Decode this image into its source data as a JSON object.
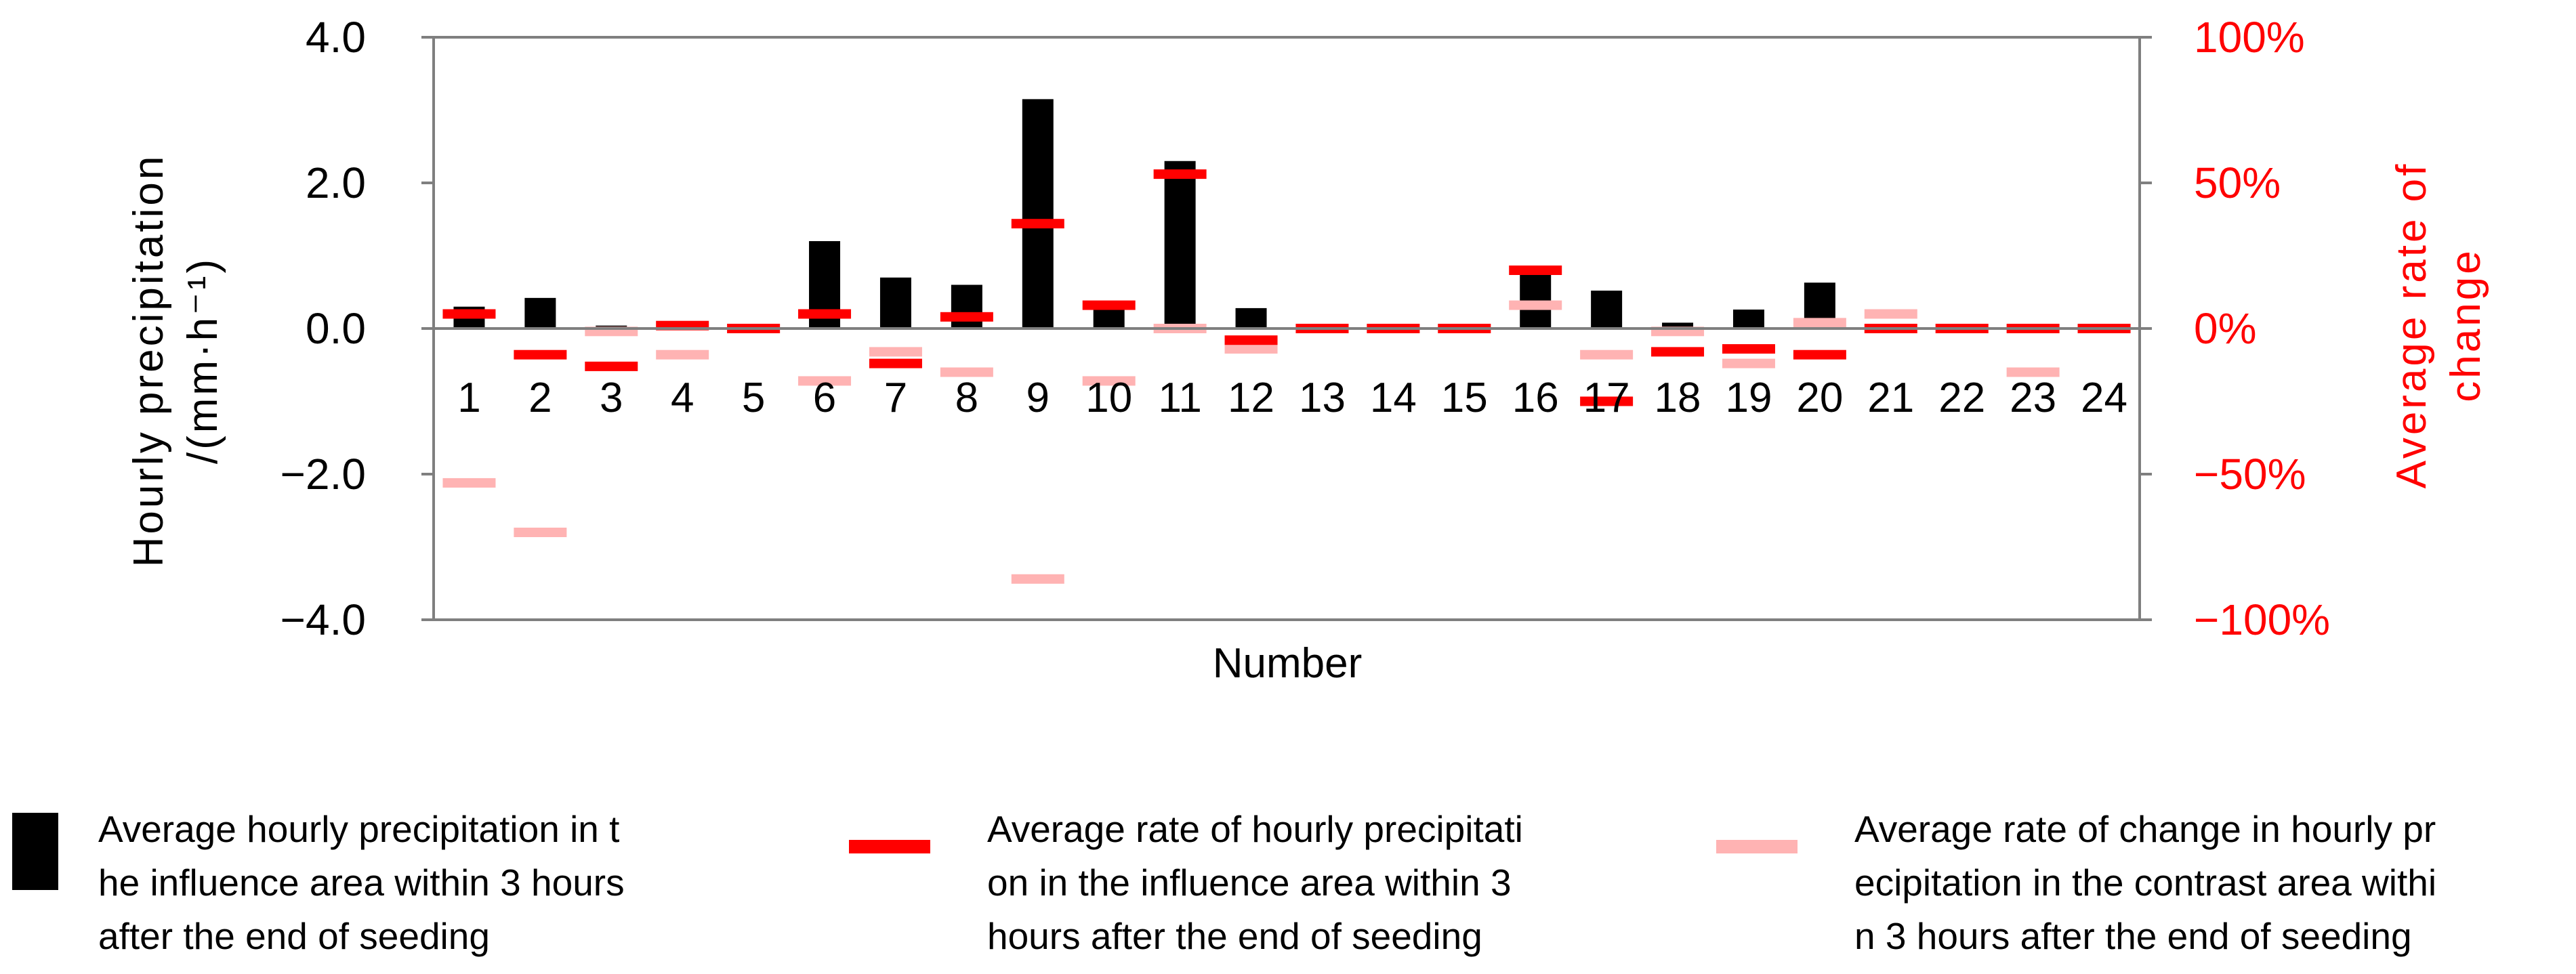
{
  "colors": {
    "bar": "#000000",
    "influence": "#ff0000",
    "contrast": "#ffb3b3",
    "right_axis": "#ff0000",
    "frame": "#7f7f7f"
  },
  "chart_data": {
    "type": "bar",
    "categories": [
      "1",
      "2",
      "3",
      "4",
      "5",
      "6",
      "7",
      "8",
      "9",
      "10",
      "11",
      "12",
      "13",
      "14",
      "15",
      "16",
      "17",
      "18",
      "19",
      "20",
      "21",
      "22",
      "23",
      "24"
    ],
    "xlabel": "Number",
    "ylabel_left_line1": "Hourly precipitation",
    "ylabel_left_line2": "/(mm·h⁻¹)",
    "ylabel_right_line1": "Average rate of",
    "ylabel_right_line2": "change",
    "ylim_left": [
      -4,
      4
    ],
    "ylim_right": [
      -100,
      100
    ],
    "yticks_left": [
      "4.0",
      "2.0",
      "0.0",
      "−2.0",
      "−4.0"
    ],
    "yticks_right": [
      "100%",
      "50%",
      "0%",
      "−50%",
      "−100%"
    ],
    "grid": false,
    "legend_position": "bottom",
    "series": [
      {
        "name_lines": [
          "Average hourly precipitation in t",
          "he influence area within 3 hours",
          "after the end of seeding"
        ],
        "axis": "left",
        "mark": "bar",
        "values": [
          0.3,
          0.42,
          0.04,
          0.02,
          0.06,
          1.2,
          0.7,
          0.6,
          3.15,
          0.3,
          2.3,
          0.28,
          0.05,
          0.05,
          0.05,
          0.85,
          0.52,
          0.08,
          0.26,
          0.63,
          0.02,
          0.02,
          0.02,
          0.02
        ]
      },
      {
        "name_lines": [
          "Average rate of hourly precipitati",
          "on in the influence area within 3",
          "hours after the end of seeding"
        ],
        "axis": "right",
        "mark": "dash",
        "values": [
          5,
          -9,
          -13,
          1,
          0,
          5,
          -12,
          4,
          36,
          8,
          53,
          -4,
          0,
          0,
          0,
          20,
          -25,
          -8,
          -7,
          -9,
          0,
          0,
          0,
          0
        ]
      },
      {
        "name_lines": [
          "Average rate of change in hourly pr",
          "ecipitation in the contrast area withi",
          "n 3 hours after the end of seeding"
        ],
        "axis": "right",
        "mark": "dash",
        "values": [
          -53,
          -70,
          -1,
          -9,
          0,
          -18,
          -8,
          -15,
          -86,
          -18,
          0,
          -7,
          0,
          0,
          0,
          8,
          -9,
          -1,
          -12,
          2,
          5,
          0,
          -15,
          0
        ]
      }
    ]
  }
}
